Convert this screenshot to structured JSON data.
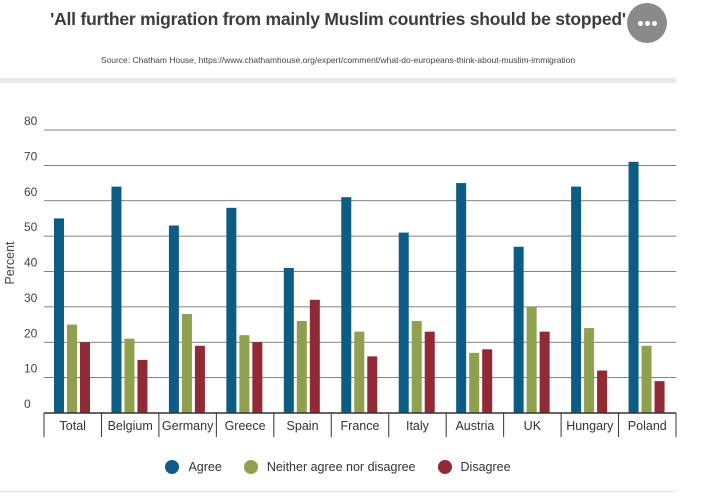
{
  "header": {
    "title": "'All further migration from mainly Muslim countries should be stopped'",
    "source": "Source: Chatham House, https://www.chathamhouse.org/expert/comment/what-do-europeans-think-about-muslim-immigration"
  },
  "menu": {
    "icon": "more-horizontal-icon"
  },
  "chart_data": {
    "type": "bar",
    "title": "'All further migration from mainly Muslim countries should be stopped'",
    "xlabel": "",
    "ylabel": "Percent",
    "ylim": [
      0,
      80
    ],
    "yticks": [
      "0",
      "10",
      "20",
      "30",
      "40",
      "50",
      "60",
      "70",
      "80"
    ],
    "grid": true,
    "legend_position": "bottom",
    "categories": [
      "Total",
      "Belgium",
      "Germany",
      "Greece",
      "Spain",
      "France",
      "Italy",
      "Austria",
      "UK",
      "Hungary",
      "Poland"
    ],
    "series": [
      {
        "name": "Agree",
        "color": "#0d5c85",
        "values": [
          55,
          64,
          53,
          58,
          41,
          61,
          51,
          65,
          47,
          64,
          71
        ]
      },
      {
        "name": "Neither agree nor disagree",
        "color": "#8fa04e",
        "values": [
          25,
          21,
          28,
          22,
          26,
          23,
          26,
          17,
          30,
          24,
          19
        ]
      },
      {
        "name": "Disagree",
        "color": "#912a34",
        "values": [
          20,
          15,
          19,
          20,
          32,
          16,
          23,
          18,
          23,
          12,
          9
        ]
      }
    ]
  }
}
